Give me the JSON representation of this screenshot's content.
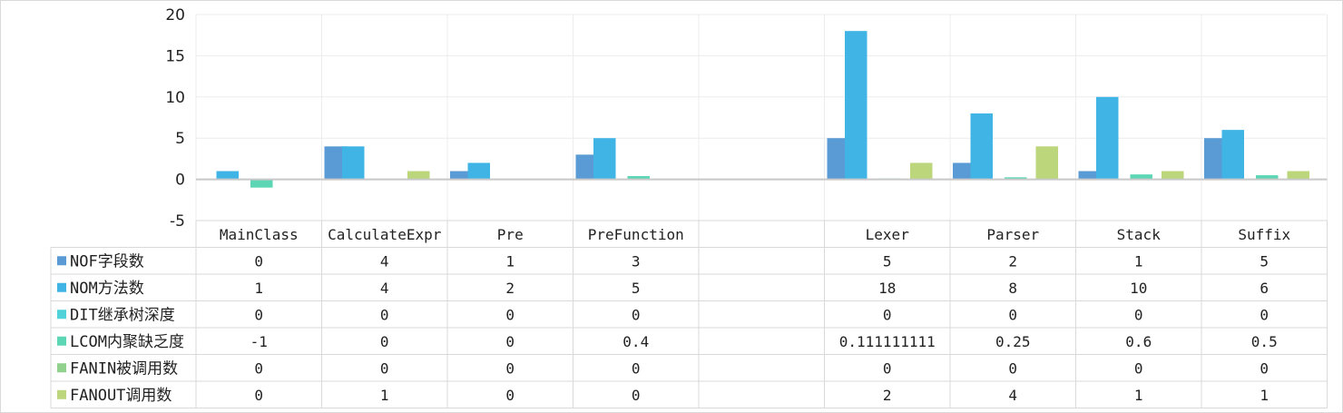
{
  "chart_data": {
    "type": "bar",
    "categories": [
      "MainClass",
      "CalculateExpr",
      "Pre",
      "PreFunction",
      "",
      "Lexer",
      "Parser",
      "Stack",
      "Suffix"
    ],
    "series": [
      {
        "name": "NOF字段数",
        "color": "#5b9bd5",
        "values": [
          0,
          4,
          1,
          3,
          null,
          5,
          2,
          1,
          5
        ],
        "labels": [
          "0",
          "4",
          "1",
          "3",
          "",
          "5",
          "2",
          "1",
          "5"
        ]
      },
      {
        "name": "NOM方法数",
        "color": "#41b4e6",
        "values": [
          1,
          4,
          2,
          5,
          null,
          18,
          8,
          10,
          6
        ],
        "labels": [
          "1",
          "4",
          "2",
          "5",
          "",
          "18",
          "8",
          "10",
          "6"
        ]
      },
      {
        "name": "DIT继承树深度",
        "color": "#4fd2d8",
        "values": [
          0,
          0,
          0,
          0,
          null,
          0,
          0,
          0,
          0
        ],
        "labels": [
          "0",
          "0",
          "0",
          "0",
          "",
          "0",
          "0",
          "0",
          "0"
        ]
      },
      {
        "name": "LCOM内聚缺乏度",
        "color": "#5cd6b4",
        "values": [
          -1,
          0,
          0,
          0.4,
          null,
          0.111111111,
          0.25,
          0.6,
          0.5
        ],
        "labels": [
          "-1",
          "0",
          "0",
          "0.4",
          "",
          "0.111111111",
          "0.25",
          "0.6",
          "0.5"
        ]
      },
      {
        "name": "FANIN被调用数",
        "color": "#8fd18d",
        "values": [
          0,
          0,
          0,
          0,
          null,
          0,
          0,
          0,
          0
        ],
        "labels": [
          "0",
          "0",
          "0",
          "0",
          "",
          "0",
          "0",
          "0",
          "0"
        ]
      },
      {
        "name": "FANOUT调用数",
        "color": "#bcd67b",
        "values": [
          0,
          1,
          0,
          0,
          null,
          2,
          4,
          1,
          1
        ],
        "labels": [
          "0",
          "1",
          "0",
          "0",
          "",
          "2",
          "4",
          "1",
          "1"
        ]
      }
    ],
    "ylim": [
      -5,
      20
    ],
    "yticks": [
      "20",
      "15",
      "10",
      "5",
      "0",
      "-5"
    ],
    "grid": true,
    "legend": "data-table"
  }
}
